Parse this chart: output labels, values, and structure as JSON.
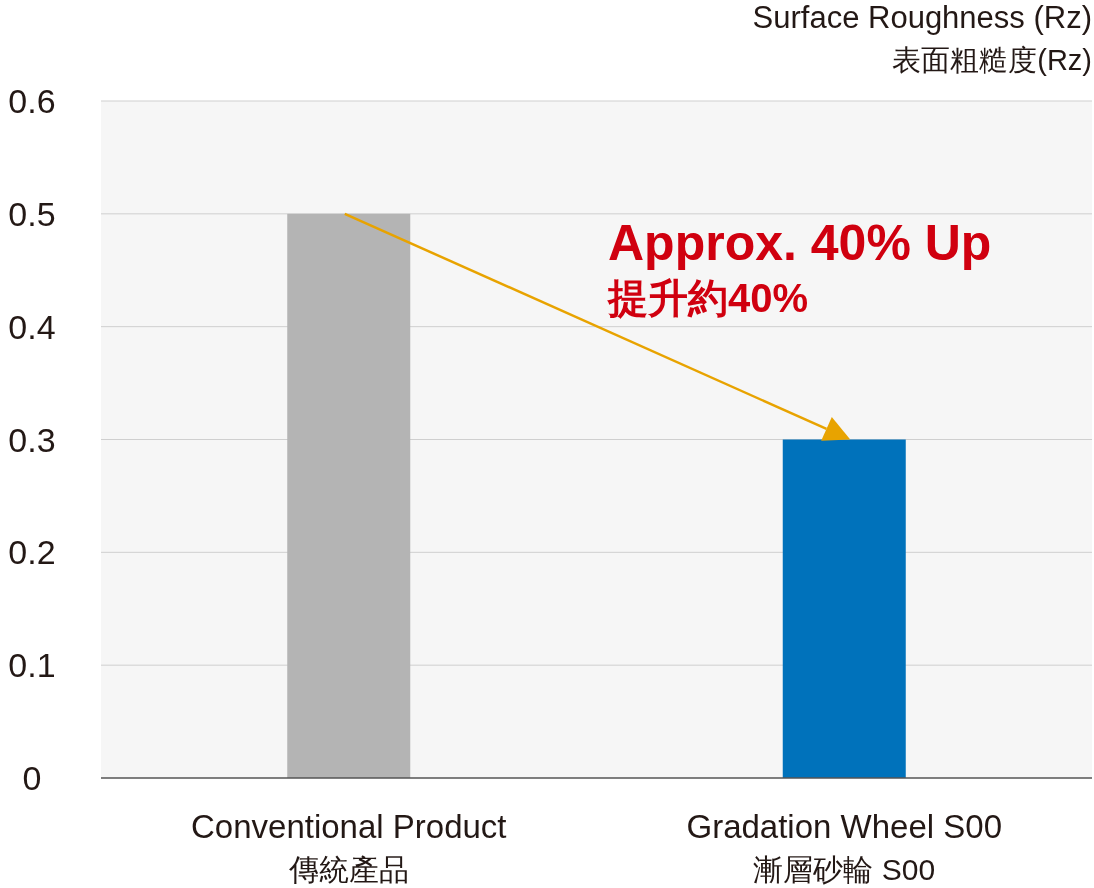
{
  "chart_data": {
    "type": "bar",
    "ylabel": "Surface Roughness (Rz)\n表面粗糙度(Rz)",
    "categories": [
      "Conventional Product\n傳統產品",
      "Gradation Wheel S00\n漸層砂輪 S00"
    ],
    "values": [
      0.5,
      0.3
    ],
    "colors": [
      "#b4b4b4",
      "#0072bb"
    ],
    "ylim": [
      0,
      0.6
    ],
    "yticks": [
      0,
      0.1,
      0.2,
      0.3,
      0.4,
      0.5,
      0.6
    ],
    "grid": "y",
    "annotations": [
      "Approx. 40% Up",
      "提升約40%"
    ]
  }
}
